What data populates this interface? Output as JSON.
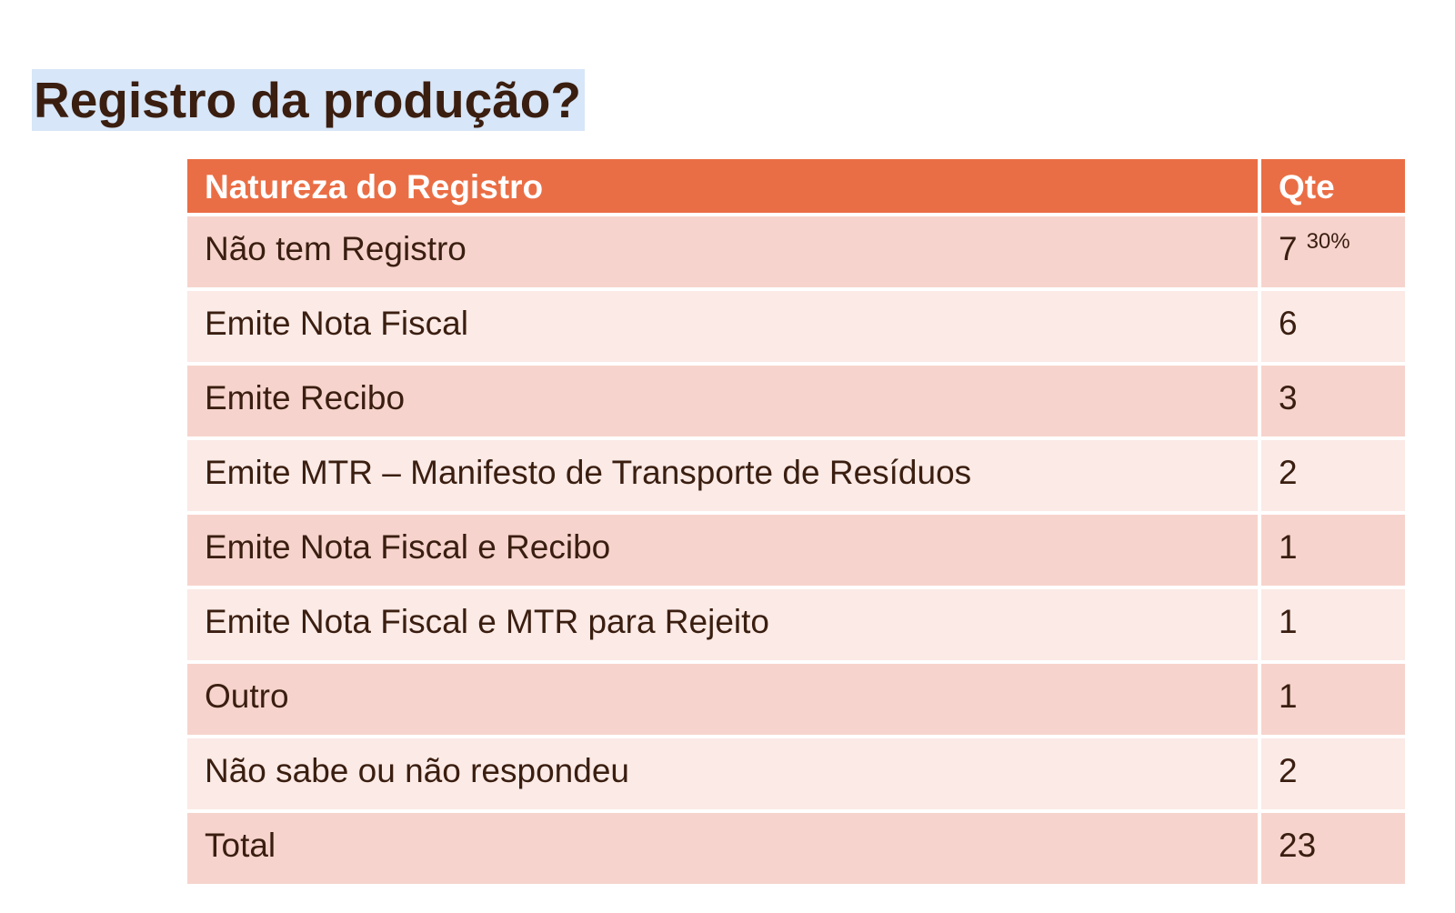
{
  "title": "Registro da produção?",
  "table": {
    "headers": {
      "natureza": "Natureza do Registro",
      "qte": "Qte"
    },
    "rows": [
      {
        "natureza": "Não tem Registro",
        "qte": "7",
        "pct": "30%"
      },
      {
        "natureza": "Emite Nota Fiscal",
        "qte": "6"
      },
      {
        "natureza": "Emite Recibo",
        "qte": "3"
      },
      {
        "natureza": "Emite MTR – Manifesto de Transporte de Resíduos",
        "qte": "2"
      },
      {
        "natureza": "Emite Nota Fiscal e Recibo",
        "qte": "1"
      },
      {
        "natureza": "Emite Nota Fiscal e MTR para Rejeito",
        "qte": "1"
      },
      {
        "natureza": "Outro",
        "qte": "1"
      },
      {
        "natureza": "Não sabe ou não respondeu",
        "qte": "2"
      },
      {
        "natureza": "Total",
        "qte": "23"
      }
    ]
  },
  "colors": {
    "header": "#ea6e45",
    "row_odd": "#f6d4cd",
    "row_even": "#fbeae6",
    "text": "#3a1e10",
    "title_highlight": "#d7e6f8"
  }
}
